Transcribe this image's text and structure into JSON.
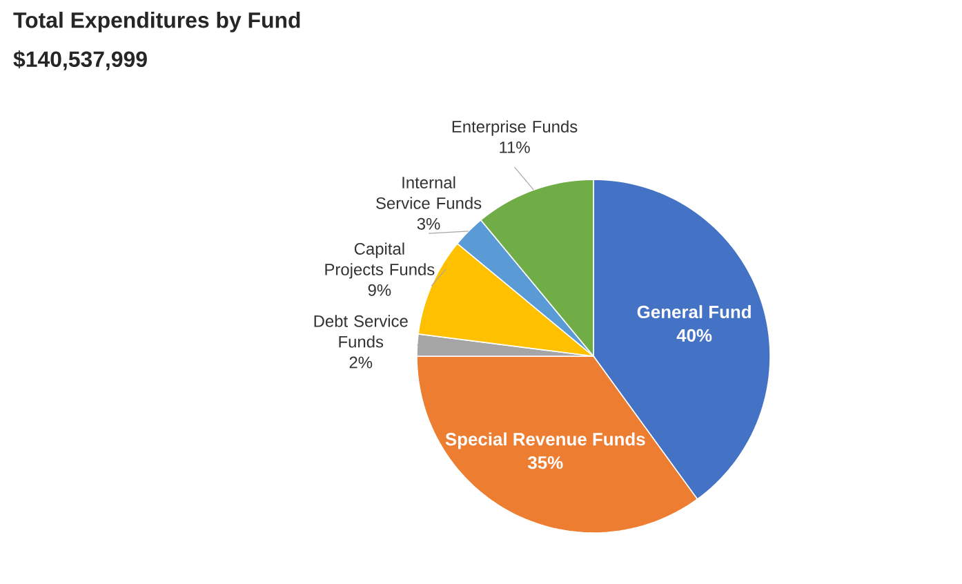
{
  "chart_data": {
    "type": "pie",
    "title": "Total Expenditures by Fund",
    "subtitle": "$140,537,999",
    "categories": [
      "General Fund",
      "Special Revenue Funds",
      "Debt Service Funds",
      "Capital Projects Funds",
      "Internal Service Funds",
      "Enterprise Funds"
    ],
    "values": [
      40,
      35,
      2,
      9,
      3,
      11
    ],
    "value_labels": [
      "40%",
      "35%",
      "2%",
      "9%",
      "3%",
      "11%"
    ],
    "colors": [
      "#4472c4",
      "#ed7d31",
      "#a5a5a5",
      "#ffc000",
      "#5b9bd5",
      "#70ad47"
    ],
    "legend": false
  }
}
